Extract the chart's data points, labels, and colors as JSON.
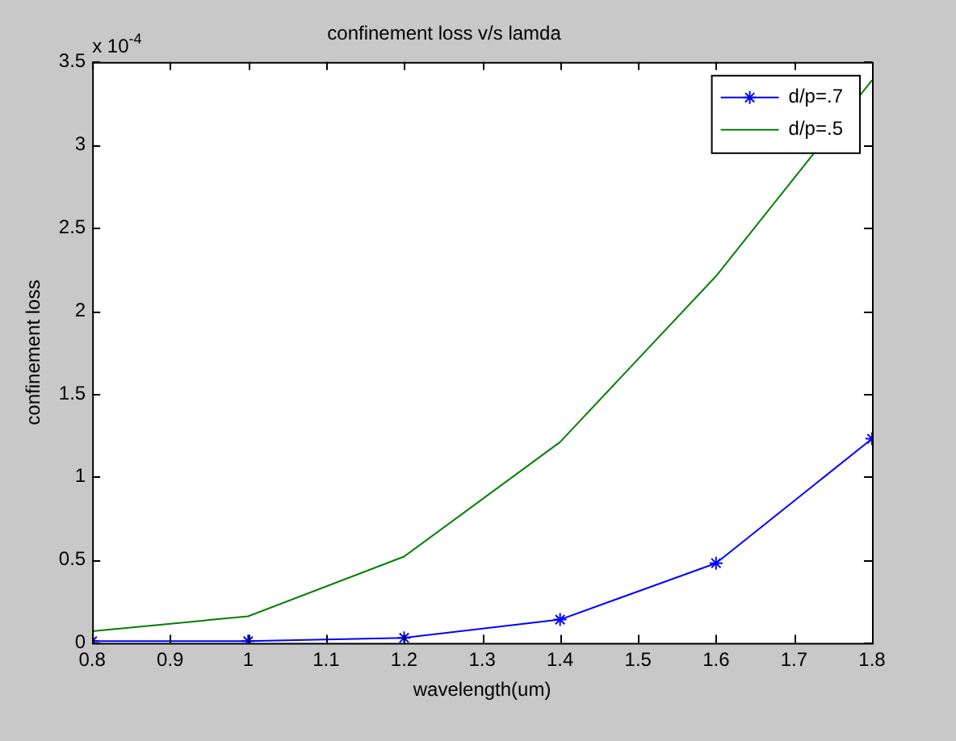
{
  "chart_data": {
    "type": "line",
    "title": "confinement loss v/s lamda",
    "xlabel": "wavelength(um)",
    "ylabel": "confinement loss",
    "annotations": [
      "x 10$^{-4}$"
    ],
    "x": [
      0.8,
      1.0,
      1.2,
      1.4,
      1.6,
      1.8
    ],
    "series": [
      {
        "name": "d/p=.7",
        "color": "#0000ff",
        "marker": "cross",
        "values": [
          0.01,
          0.01,
          0.03,
          0.14,
          0.48,
          1.23
        ]
      },
      {
        "name": "d/p=.5",
        "color": "#008000",
        "marker": "none",
        "values": [
          0.07,
          0.16,
          0.52,
          1.21,
          2.21,
          3.39
        ]
      }
    ],
    "xlim": [
      0.8,
      1.8
    ],
    "xticks": [
      0.8,
      0.9,
      1,
      1.1,
      1.2,
      1.3,
      1.4,
      1.5,
      1.6,
      1.7,
      1.8
    ],
    "ylim": [
      0,
      3.5
    ],
    "yticks": [
      0,
      0.5,
      1,
      1.5,
      2,
      2.5,
      3,
      3.5
    ],
    "grid": false,
    "legend": "top right",
    "line_style": "solid"
  }
}
